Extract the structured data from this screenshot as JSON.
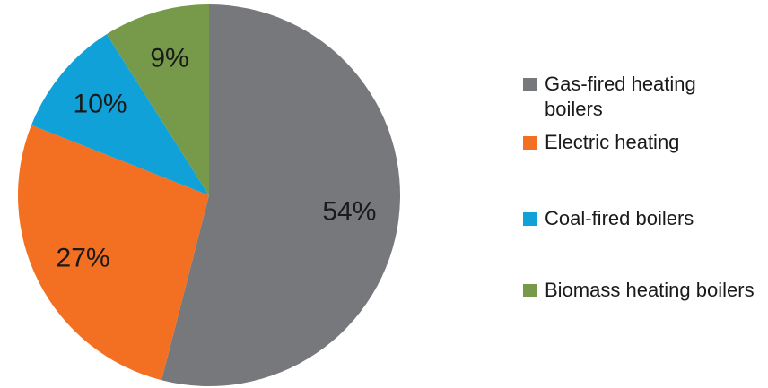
{
  "chart_data": {
    "type": "pie",
    "categories": [
      "Gas-fired heating boilers",
      "Electric heating",
      "Coal-fired boilers",
      "Biomass heating boilers"
    ],
    "values": [
      54,
      27,
      10,
      9
    ],
    "value_labels": [
      "54%",
      "27%",
      "10%",
      "9%"
    ],
    "colors": [
      "#77787b",
      "#f36f21",
      "#0fa1d8",
      "#779a4a"
    ],
    "legend": "right"
  }
}
